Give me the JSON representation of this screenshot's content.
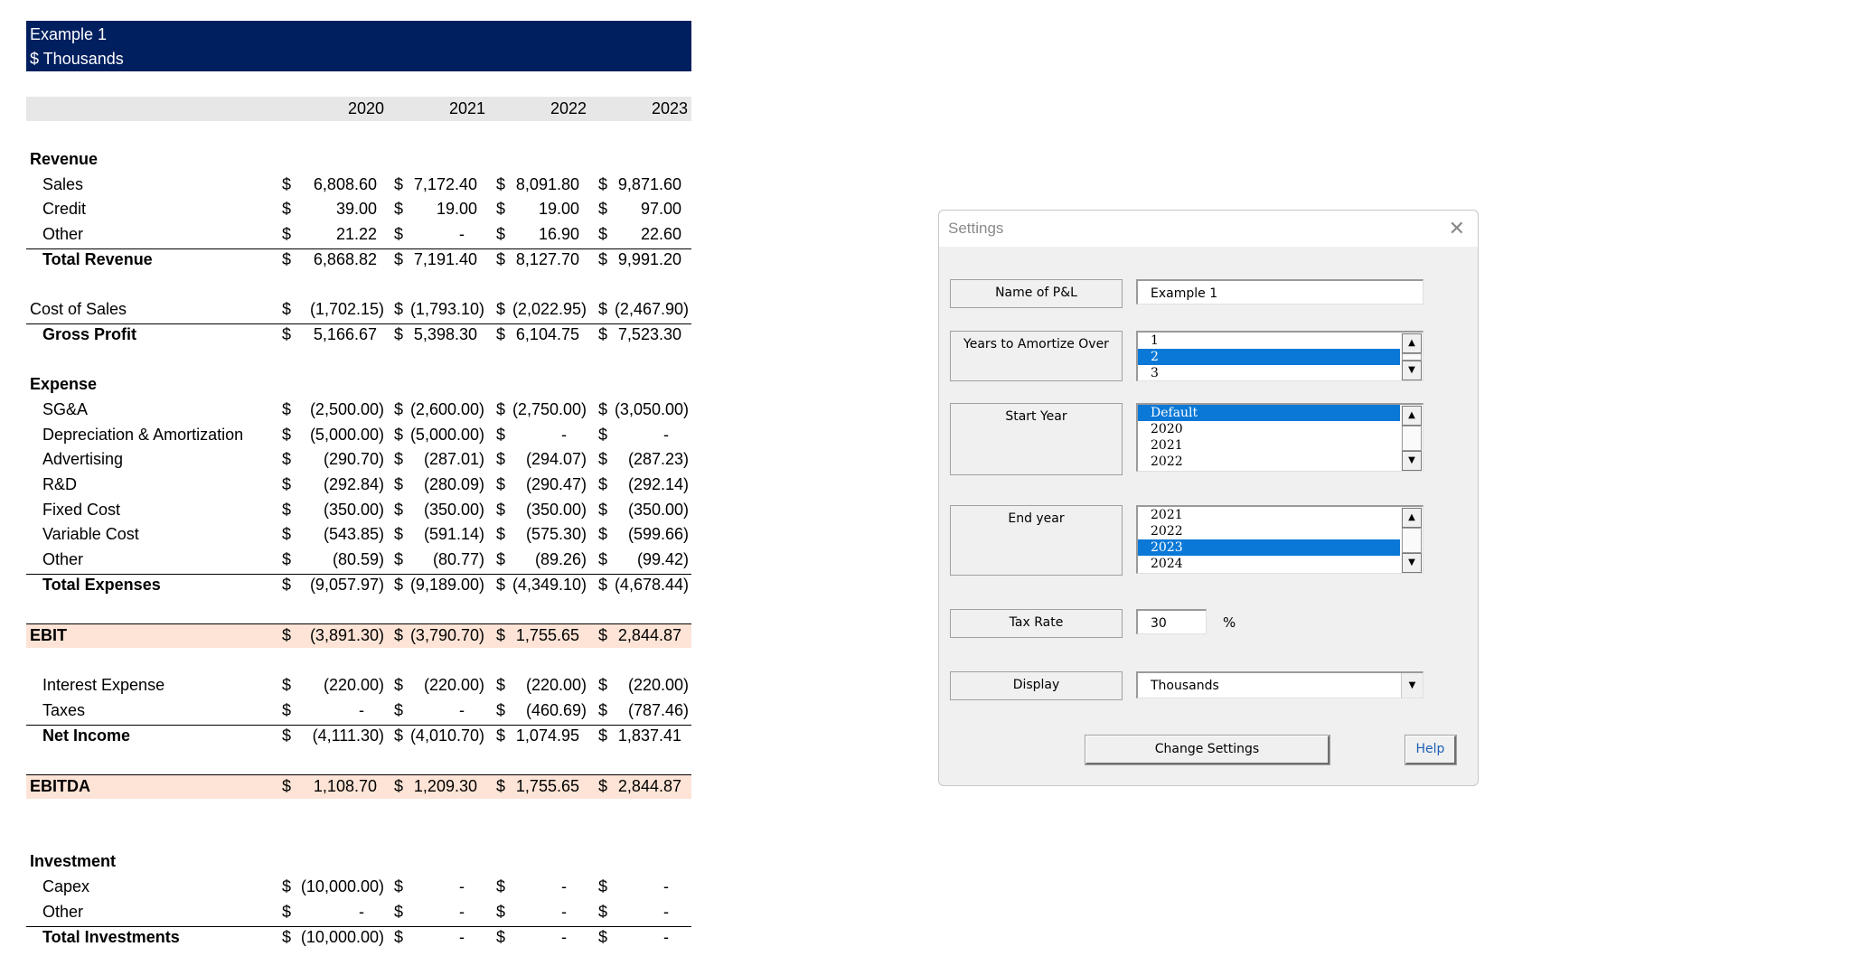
{
  "sheet": {
    "header": {
      "line1": "Example 1",
      "line2": "$ Thousands"
    },
    "years": [
      "2020",
      "2021",
      "2022",
      "2023"
    ],
    "currency_symbol": "$",
    "rows": [
      {
        "label": "Revenue",
        "kind": "section"
      },
      {
        "label": "Sales",
        "kind": "item",
        "values": [
          "6,808.60",
          "7,172.40",
          "8,091.80",
          "9,871.60"
        ]
      },
      {
        "label": "Credit",
        "kind": "item",
        "values": [
          "39.00",
          "19.00",
          "19.00",
          "97.00"
        ]
      },
      {
        "label": "Other",
        "kind": "item",
        "values": [
          "21.22",
          "-",
          "16.90",
          "22.60"
        ]
      },
      {
        "label": "Total Revenue",
        "kind": "total",
        "values": [
          "6,868.82",
          "7,191.40",
          "8,127.70",
          "9,991.20"
        ]
      },
      {
        "label": "Cost of Sales",
        "kind": "plain",
        "values": [
          "(1,702.15)",
          "(1,793.10)",
          "(2,022.95)",
          "(2,467.90)"
        ]
      },
      {
        "label": "Gross Profit",
        "kind": "total",
        "values": [
          "5,166.67",
          "5,398.30",
          "6,104.75",
          "7,523.30"
        ]
      },
      {
        "label": "Expense",
        "kind": "section"
      },
      {
        "label": "SG&A",
        "kind": "item",
        "values": [
          "(2,500.00)",
          "(2,600.00)",
          "(2,750.00)",
          "(3,050.00)"
        ]
      },
      {
        "label": "Depreciation & Amortization",
        "kind": "item",
        "values": [
          "(5,000.00)",
          "(5,000.00)",
          "-",
          "-"
        ]
      },
      {
        "label": "Advertising",
        "kind": "item",
        "values": [
          "(290.70)",
          "(287.01)",
          "(294.07)",
          "(287.23)"
        ]
      },
      {
        "label": "R&D",
        "kind": "item",
        "values": [
          "(292.84)",
          "(280.09)",
          "(290.47)",
          "(292.14)"
        ]
      },
      {
        "label": "Fixed Cost",
        "kind": "item",
        "values": [
          "(350.00)",
          "(350.00)",
          "(350.00)",
          "(350.00)"
        ]
      },
      {
        "label": "Variable Cost",
        "kind": "item",
        "values": [
          "(543.85)",
          "(591.14)",
          "(575.30)",
          "(599.66)"
        ]
      },
      {
        "label": "Other",
        "kind": "item",
        "values": [
          "(80.59)",
          "(80.77)",
          "(89.26)",
          "(99.42)"
        ]
      },
      {
        "label": "Total Expenses",
        "kind": "total",
        "values": [
          "(9,057.97)",
          "(9,189.00)",
          "(4,349.10)",
          "(4,678.44)"
        ]
      },
      {
        "label": "EBIT",
        "kind": "highlight",
        "values": [
          "(3,891.30)",
          "(3,790.70)",
          "1,755.65",
          "2,844.87"
        ]
      },
      {
        "label": "Interest Expense",
        "kind": "item",
        "values": [
          "(220.00)",
          "(220.00)",
          "(220.00)",
          "(220.00)"
        ]
      },
      {
        "label": "Taxes",
        "kind": "item",
        "values": [
          "-",
          "-",
          "(460.69)",
          "(787.46)"
        ]
      },
      {
        "label": "Net Income",
        "kind": "total",
        "values": [
          "(4,111.30)",
          "(4,010.70)",
          "1,074.95",
          "1,837.41"
        ]
      },
      {
        "label": "EBITDA",
        "kind": "highlight",
        "values": [
          "1,108.70",
          "1,209.30",
          "1,755.65",
          "2,844.87"
        ]
      },
      {
        "label": "Investment",
        "kind": "section"
      },
      {
        "label": "Capex",
        "kind": "item",
        "values": [
          "(10,000.00)",
          "-",
          "-",
          "-"
        ]
      },
      {
        "label": "Other",
        "kind": "item",
        "values": [
          "-",
          "-",
          "-",
          "-"
        ]
      },
      {
        "label": "Total Investments",
        "kind": "total",
        "values": [
          "(10,000.00)",
          "-",
          "-",
          "-"
        ]
      }
    ],
    "colors": {
      "header_band": "#001f5f",
      "year_band": "#e7e7e7",
      "highlight_band": "#fde4d6"
    }
  },
  "dialog": {
    "title": "Settings",
    "name_label": "Name of P&L",
    "name_value": "Example 1",
    "years_label": "Years to Amortize Over",
    "years_options": [
      "1",
      "2",
      "3"
    ],
    "years_selected": "2",
    "start_label": "Start Year",
    "start_options": [
      "Default",
      "2020",
      "2021",
      "2022"
    ],
    "start_selected": "Default",
    "end_label": "End year",
    "end_options": [
      "2021",
      "2022",
      "2023",
      "2024"
    ],
    "end_selected": "2023",
    "tax_label": "Tax Rate",
    "tax_value": "30",
    "tax_unit": "%",
    "display_label": "Display",
    "display_value": "Thousands",
    "change_button": "Change Settings",
    "help_button": "Help",
    "colors": {
      "selection": "#0a78d7",
      "help_text": "#1e5fb4"
    }
  }
}
